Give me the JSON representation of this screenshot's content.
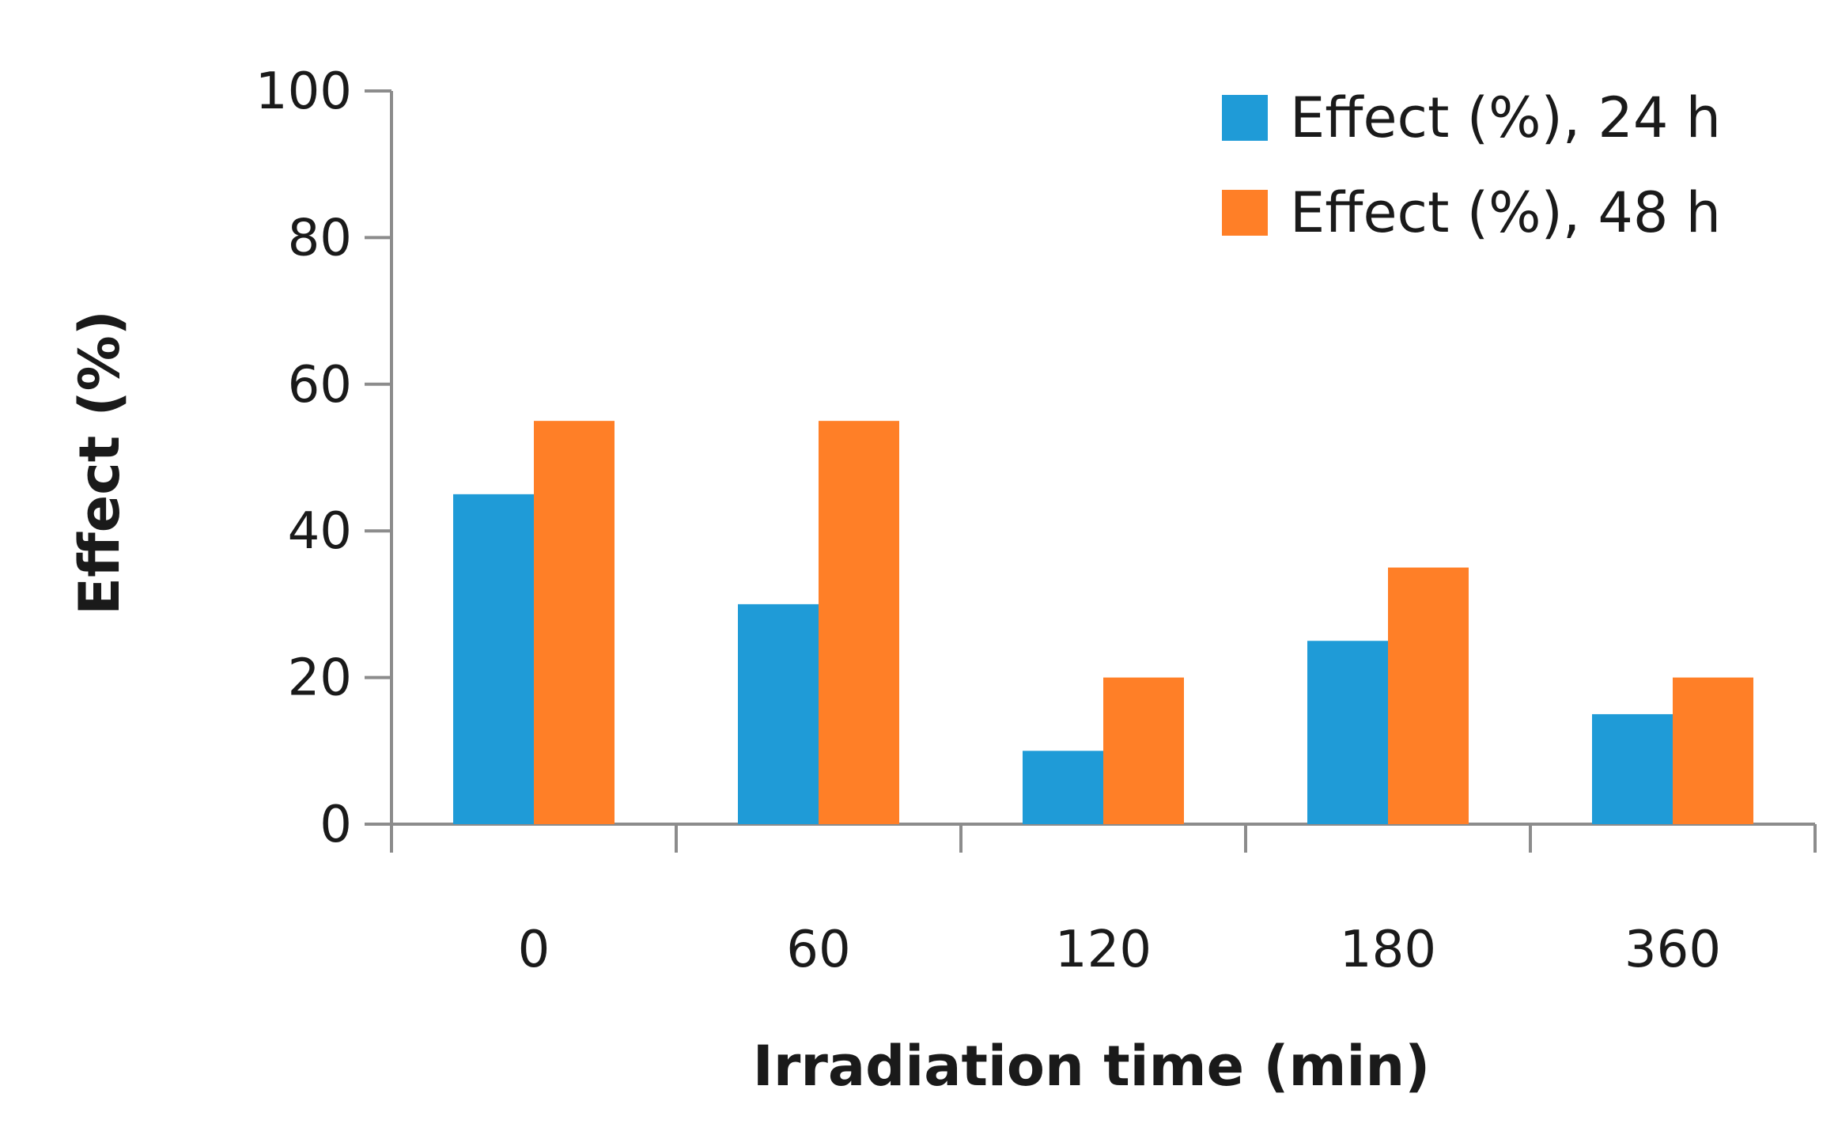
{
  "chart_data": {
    "type": "bar",
    "title": "",
    "xlabel": "Irradiation time (min)",
    "ylabel": "Effect (%)",
    "categories": [
      "0",
      "60",
      "120",
      "180",
      "360"
    ],
    "series": [
      {
        "name": "Effect (%), 24 h",
        "color": "#1F9BD7",
        "values": [
          45,
          30,
          10,
          25,
          15
        ]
      },
      {
        "name": "Effect (%), 48 h",
        "color": "#FF7F27",
        "values": [
          55,
          55,
          20,
          35,
          20
        ]
      }
    ],
    "ylim": [
      0,
      100
    ],
    "yticks": [
      "0",
      "20",
      "40",
      "60",
      "80",
      "100"
    ],
    "grid": false,
    "legend_position": "top-right",
    "axis_color": "#8c8c8c"
  }
}
